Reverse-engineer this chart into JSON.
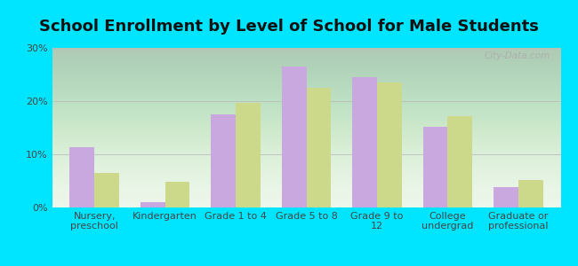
{
  "title": "School Enrollment by Level of School for Male Students",
  "categories": [
    "Nursery,\npreschool",
    "Kindergarten",
    "Grade 1 to 4",
    "Grade 5 to 8",
    "Grade 9 to\n12",
    "College\nundergrad",
    "Graduate or\nprofessional"
  ],
  "palos_hills": [
    11.3,
    1.0,
    17.5,
    26.5,
    24.5,
    15.2,
    3.8
  ],
  "illinois": [
    6.5,
    4.9,
    19.6,
    22.5,
    23.5,
    17.2,
    5.1
  ],
  "palos_hills_color": "#c9a8e0",
  "illinois_color": "#cdd98a",
  "background_outer": "#00e5ff",
  "background_inner_top": "#f5fff5",
  "background_inner_bottom": "#c8e8c0",
  "bar_width": 0.35,
  "ylim": [
    0,
    30
  ],
  "yticks": [
    0,
    10,
    20,
    30
  ],
  "ytick_labels": [
    "0%",
    "10%",
    "20%",
    "30%"
  ],
  "grid_color": "#bbbbbb",
  "title_fontsize": 13,
  "tick_fontsize": 8,
  "legend_fontsize": 9,
  "watermark": "City-Data.com"
}
